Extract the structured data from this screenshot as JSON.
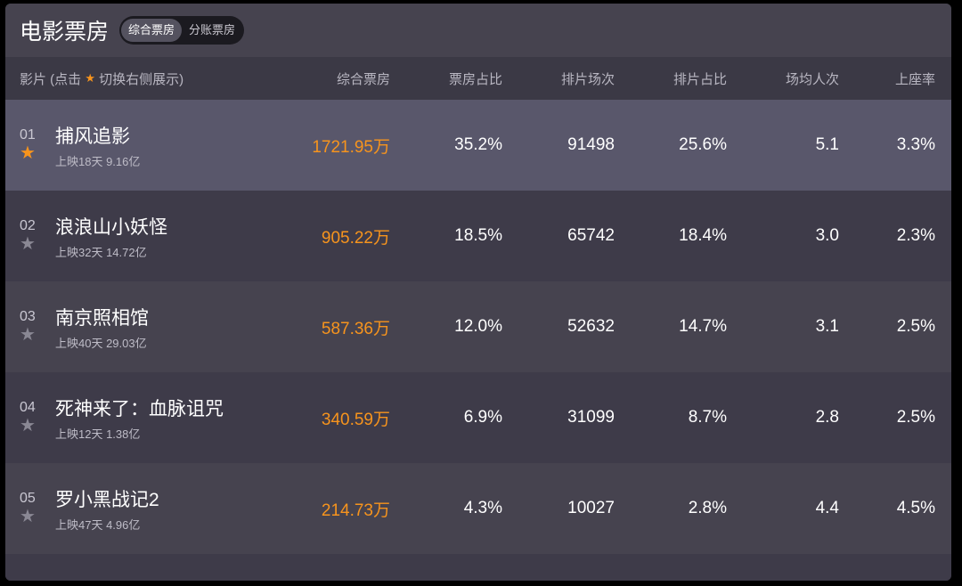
{
  "header": {
    "title": "电影票房",
    "tabs": [
      {
        "label": "综合票房",
        "active": true
      },
      {
        "label": "分账票房",
        "active": false
      }
    ]
  },
  "columns": {
    "film_prefix": "影片 (点击",
    "film_suffix": "切换右侧展示)",
    "box": "综合票房",
    "box_ratio": "票房占比",
    "shows": "排片场次",
    "show_ratio": "排片占比",
    "avg": "场均人次",
    "occupancy": "上座率"
  },
  "colors": {
    "accent": "#f7941d"
  },
  "rows": [
    {
      "rank": "01",
      "name": "捕风追影",
      "info": "上映18天  9.16亿",
      "box": "1721.95万",
      "box_ratio": "35.2%",
      "shows": "91498",
      "show_ratio": "25.6%",
      "avg": "5.1",
      "occupancy": "3.3%",
      "starred": true
    },
    {
      "rank": "02",
      "name": "浪浪山小妖怪",
      "info": "上映32天  14.72亿",
      "box": "905.22万",
      "box_ratio": "18.5%",
      "shows": "65742",
      "show_ratio": "18.4%",
      "avg": "3.0",
      "occupancy": "2.3%",
      "starred": false
    },
    {
      "rank": "03",
      "name": "南京照相馆",
      "info": "上映40天  29.03亿",
      "box": "587.36万",
      "box_ratio": "12.0%",
      "shows": "52632",
      "show_ratio": "14.7%",
      "avg": "3.1",
      "occupancy": "2.5%",
      "starred": false
    },
    {
      "rank": "04",
      "name": "死神来了：血脉诅咒",
      "info": "上映12天  1.38亿",
      "box": "340.59万",
      "box_ratio": "6.9%",
      "shows": "31099",
      "show_ratio": "8.7%",
      "avg": "2.8",
      "occupancy": "2.5%",
      "starred": false
    },
    {
      "rank": "05",
      "name": "罗小黑战记2",
      "info": "上映47天  4.96亿",
      "box": "214.73万",
      "box_ratio": "4.3%",
      "shows": "10027",
      "show_ratio": "2.8%",
      "avg": "4.4",
      "occupancy": "4.5%",
      "starred": false
    }
  ]
}
